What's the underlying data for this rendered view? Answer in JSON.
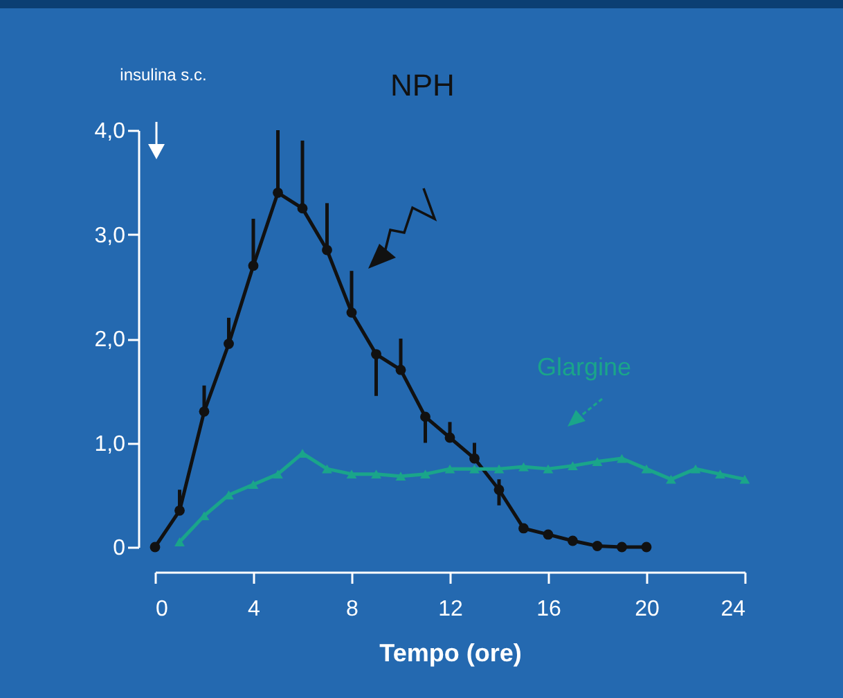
{
  "chart_data": {
    "type": "line",
    "xlabel": "Tempo (ore)",
    "annotations": [
      "insulina s.c."
    ],
    "xlim": [
      0,
      24
    ],
    "xticks": [
      0,
      4,
      8,
      12,
      16,
      20,
      24
    ],
    "ylim": [
      0,
      4
    ],
    "yticks": [
      {
        "value": 0,
        "label": "0"
      },
      {
        "value": 1,
        "label": "1,0"
      },
      {
        "value": 2,
        "label": "2,0"
      },
      {
        "value": 3,
        "label": "3,0"
      },
      {
        "value": 4,
        "label": "4,0"
      }
    ],
    "grid": false,
    "legend": false,
    "line_style": "solid",
    "series": [
      {
        "name": "NPH",
        "color": "#111111",
        "marker": "circle",
        "x": [
          0,
          1,
          2,
          3,
          4,
          5,
          6,
          7,
          8,
          9,
          10,
          11,
          12,
          13,
          14,
          15,
          16,
          17,
          18,
          19,
          20
        ],
        "values": [
          0,
          0.35,
          1.3,
          1.95,
          2.7,
          3.4,
          3.25,
          2.85,
          2.25,
          1.85,
          1.7,
          1.25,
          1.05,
          0.85,
          0.55,
          0.18,
          0.12,
          0.06,
          0.01,
          0,
          0
        ],
        "errors": [
          null,
          [
            0.35,
            0.55
          ],
          [
            1.3,
            1.55
          ],
          [
            1.95,
            2.2
          ],
          [
            2.7,
            3.15
          ],
          [
            3.4,
            4.0
          ],
          [
            3.25,
            3.9
          ],
          [
            2.85,
            3.3
          ],
          [
            2.25,
            2.65
          ],
          [
            1.45,
            1.85
          ],
          [
            1.7,
            2.0
          ],
          [
            1.0,
            1.25
          ],
          [
            1.05,
            1.2
          ],
          [
            0.85,
            1.0
          ],
          [
            0.4,
            0.65
          ],
          null,
          null,
          null,
          null,
          null,
          null
        ]
      },
      {
        "name": "Glargine",
        "color": "#1aa58a",
        "marker": "triangle",
        "x": [
          1,
          2,
          3,
          4,
          5,
          6,
          7,
          8,
          9,
          10,
          11,
          12,
          13,
          14,
          15,
          16,
          17,
          18,
          19,
          20,
          21,
          22,
          23,
          24
        ],
        "values": [
          0.05,
          0.3,
          0.5,
          0.6,
          0.7,
          0.9,
          0.75,
          0.7,
          0.7,
          0.68,
          0.7,
          0.75,
          0.75,
          0.75,
          0.77,
          0.75,
          0.78,
          0.82,
          0.85,
          0.75,
          0.65,
          0.75,
          0.7,
          0.65
        ]
      }
    ]
  }
}
